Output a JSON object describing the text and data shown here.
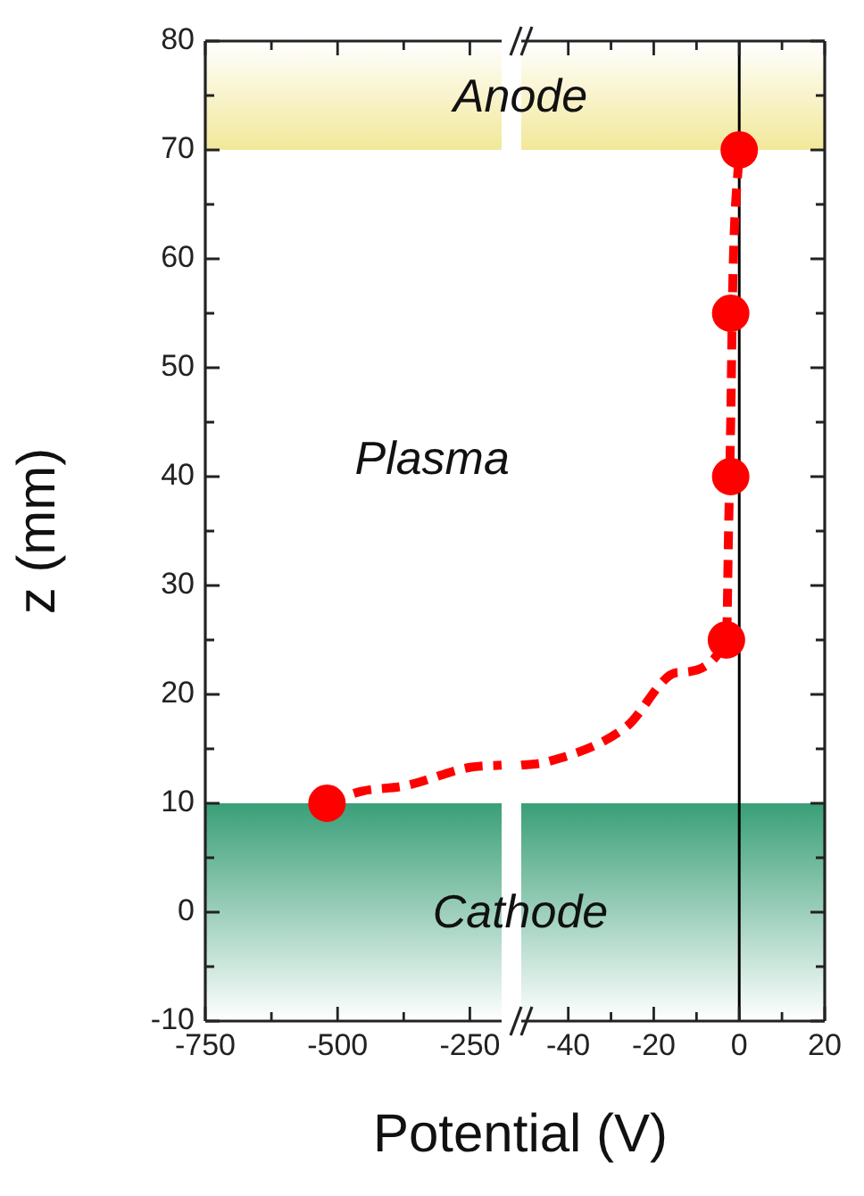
{
  "chart_data": [
    {
      "type": "scatter",
      "ylabel": "z (mm)",
      "xlim": [
        -750,
        -190
      ],
      "xticks": [
        -750,
        {
          "value": -625,
          "label": null
        },
        -500,
        {
          "value": -375,
          "label": null
        },
        -250
      ],
      "ylim": [
        -10,
        80
      ],
      "yticks": [
        -10,
        {
          "value": -5,
          "label": null
        },
        0,
        {
          "value": 5,
          "label": null
        },
        10,
        {
          "value": 15,
          "label": null
        },
        20,
        {
          "value": 25,
          "label": null
        },
        30,
        {
          "value": 35,
          "label": null
        },
        40,
        {
          "value": 45,
          "label": null
        },
        50,
        {
          "value": 55,
          "label": null
        },
        60,
        {
          "value": 65,
          "label": null
        },
        70,
        {
          "value": 75,
          "label": null
        },
        80
      ],
      "grid": false,
      "legend": false,
      "bands": [
        {
          "axis": "y",
          "from": 70,
          "to": 80,
          "label": "Anode",
          "color": "#f2e89a"
        },
        {
          "axis": "y",
          "from": -10,
          "to": 10,
          "label": "Cathode",
          "color": "#3a9f78"
        }
      ],
      "annotations": [
        "Plasma"
      ],
      "series": [
        {
          "color": "#ff0000",
          "marker": "circle",
          "x": [
            -520
          ],
          "values": [
            10
          ]
        },
        {
          "type": "line",
          "color": "#ff0000",
          "marker": "none",
          "line_style": "dashed",
          "x": [
            -520,
            -455,
            -373,
            -250,
            -190
          ],
          "values": [
            10,
            11.1,
            11.6,
            13.3,
            13.5
          ]
        }
      ]
    },
    {
      "type": "scatter",
      "xlabel": "Potential (V)",
      "xlim": [
        -51,
        20
      ],
      "xticks": [
        -40,
        {
          "value": -30,
          "label": null
        },
        -20,
        {
          "value": -10,
          "label": null
        },
        0,
        {
          "value": 10,
          "label": null
        },
        20
      ],
      "ylim": [
        -10,
        80
      ],
      "yticks": [
        -10,
        {
          "value": -5,
          "label": null
        },
        0,
        {
          "value": 5,
          "label": null
        },
        10,
        {
          "value": 15,
          "label": null
        },
        20,
        {
          "value": 25,
          "label": null
        },
        30,
        {
          "value": 35,
          "label": null
        },
        40,
        {
          "value": 45,
          "label": null
        },
        50,
        {
          "value": 55,
          "label": null
        },
        60,
        {
          "value": 65,
          "label": null
        },
        70,
        {
          "value": 75,
          "label": null
        },
        80
      ],
      "grid": false,
      "legend": false,
      "tick_labels": "x",
      "bands": [
        {
          "axis": "y",
          "from": 70,
          "to": 80,
          "color": "#f2e89a"
        },
        {
          "axis": "y",
          "from": -10,
          "to": 10,
          "color": "#3a9f78"
        }
      ],
      "ref_lines": [
        {
          "axis": "x",
          "value": 0,
          "color": "#000000"
        }
      ],
      "series": [
        {
          "color": "#ff0000",
          "marker": "circle",
          "x": [
            -3,
            -2,
            -2,
            0
          ],
          "values": [
            25,
            40,
            55,
            70
          ]
        },
        {
          "type": "line",
          "color": "#ff0000",
          "marker": "none",
          "line_style": "dashed",
          "x": [
            -51,
            -45,
            -26.5,
            -14.5,
            -3,
            -2.5,
            -2,
            -1.5,
            0
          ],
          "values": [
            13.5,
            13.8,
            17,
            22,
            25,
            35,
            45,
            58,
            70
          ]
        }
      ]
    }
  ]
}
